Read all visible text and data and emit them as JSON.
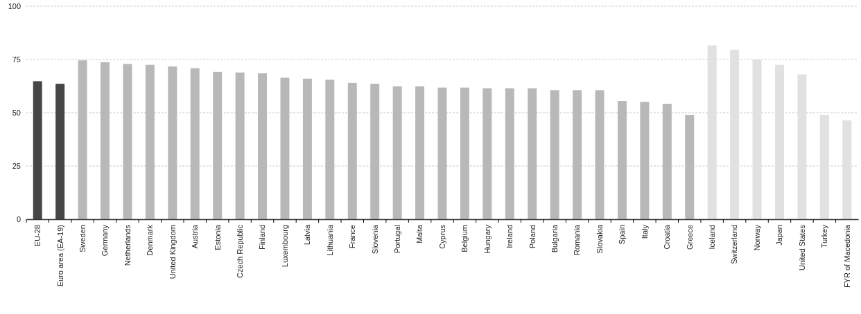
{
  "chart_data": {
    "type": "bar",
    "categories": [
      "EU-28",
      "Euro area (EA-19)",
      "Sweden",
      "Germany",
      "Netherlands",
      "Denmark",
      "United Kingdom",
      "Austria",
      "Estonia",
      "Czech Republic",
      "Finland",
      "Luxembourg",
      "Latvia",
      "Lithuania",
      "France",
      "Slovenia",
      "Portugal",
      "Malta",
      "Cyprus",
      "Belgium",
      "Hungary",
      "Ireland",
      "Poland",
      "Bulgaria",
      "Romania",
      "Slovakia",
      "Spain",
      "Italy",
      "Croatia",
      "Greece",
      "Iceland",
      "Switzerland",
      "Norway",
      "Japan",
      "United States",
      "Turkey",
      "FYR of Macedonia"
    ],
    "values": [
      64.8,
      63.6,
      74.6,
      73.7,
      72.9,
      72.5,
      71.7,
      70.9,
      69.2,
      68.9,
      68.5,
      66.4,
      66.0,
      65.5,
      64.0,
      63.6,
      62.4,
      62.4,
      61.8,
      61.8,
      61.5,
      61.5,
      61.5,
      60.6,
      60.6,
      60.6,
      55.5,
      55.1,
      54.2,
      49.0,
      81.6,
      79.6,
      74.8,
      72.5,
      68.0,
      49.0,
      46.4
    ],
    "colors": [
      "#464646",
      "#464646",
      "#b8b8b8",
      "#b8b8b8",
      "#b8b8b8",
      "#b8b8b8",
      "#b8b8b8",
      "#b8b8b8",
      "#b8b8b8",
      "#b8b8b8",
      "#b8b8b8",
      "#b8b8b8",
      "#b8b8b8",
      "#b8b8b8",
      "#b8b8b8",
      "#b8b8b8",
      "#b8b8b8",
      "#b8b8b8",
      "#b8b8b8",
      "#b8b8b8",
      "#b8b8b8",
      "#b8b8b8",
      "#b8b8b8",
      "#b8b8b8",
      "#b8b8b8",
      "#b8b8b8",
      "#b8b8b8",
      "#b8b8b8",
      "#b8b8b8",
      "#b8b8b8",
      "#e1e1e1",
      "#e1e1e1",
      "#e1e1e1",
      "#e1e1e1",
      "#e1e1e1",
      "#e1e1e1",
      "#e1e1e1"
    ],
    "ylim": [
      0,
      100
    ],
    "yticks": [
      0,
      25,
      50,
      75,
      100
    ],
    "grid": "y"
  }
}
